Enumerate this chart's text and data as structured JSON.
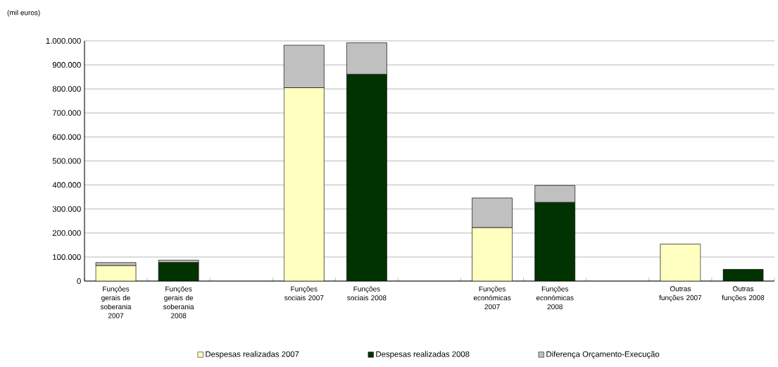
{
  "chart_data": {
    "type": "bar",
    "stacked": true,
    "ylabel": "(mil euros)",
    "categories": [
      "Funções gerais de soberania 2007",
      "Funções gerais de soberania 2008",
      null,
      "Funções sociais 2007",
      "Funções sociais 2008",
      null,
      "Funções económicas 2007",
      "Funções económicas 2008",
      null,
      "Outras funções 2007",
      "Outras funções 2008"
    ],
    "series": [
      {
        "name": "Despesas realizadas 2007",
        "color": "#ffffc0",
        "values": [
          65000,
          null,
          null,
          805000,
          null,
          null,
          223000,
          null,
          null,
          154000,
          null
        ]
      },
      {
        "name": "Despesas realizadas 2008",
        "color": "#003300",
        "values": [
          null,
          78000,
          null,
          null,
          861000,
          null,
          null,
          328000,
          null,
          null,
          49000
        ]
      },
      {
        "name": "Diferença Orçamento-Execução",
        "color": "#c0c0c0",
        "values": [
          12000,
          9000,
          null,
          177000,
          131000,
          null,
          123000,
          70000,
          null,
          null,
          null
        ]
      }
    ],
    "ylim": [
      0,
      1000000
    ],
    "yticks": [
      0,
      {
        "value": 100000,
        "label": "100.000"
      },
      {
        "value": 200000,
        "label": "200.000"
      },
      {
        "value": 300000,
        "label": "300.000"
      },
      {
        "value": 400000,
        "label": "400.000"
      },
      {
        "value": 500000,
        "label": "500.000"
      },
      {
        "value": 600000,
        "label": "600.000"
      },
      {
        "value": 700000,
        "label": "700.000"
      },
      {
        "value": 800000,
        "label": "800.000"
      },
      {
        "value": 900000,
        "label": "900.000"
      },
      {
        "value": 1000000,
        "label": "1.000.000"
      }
    ],
    "grid": "y",
    "legend": "bottom"
  }
}
